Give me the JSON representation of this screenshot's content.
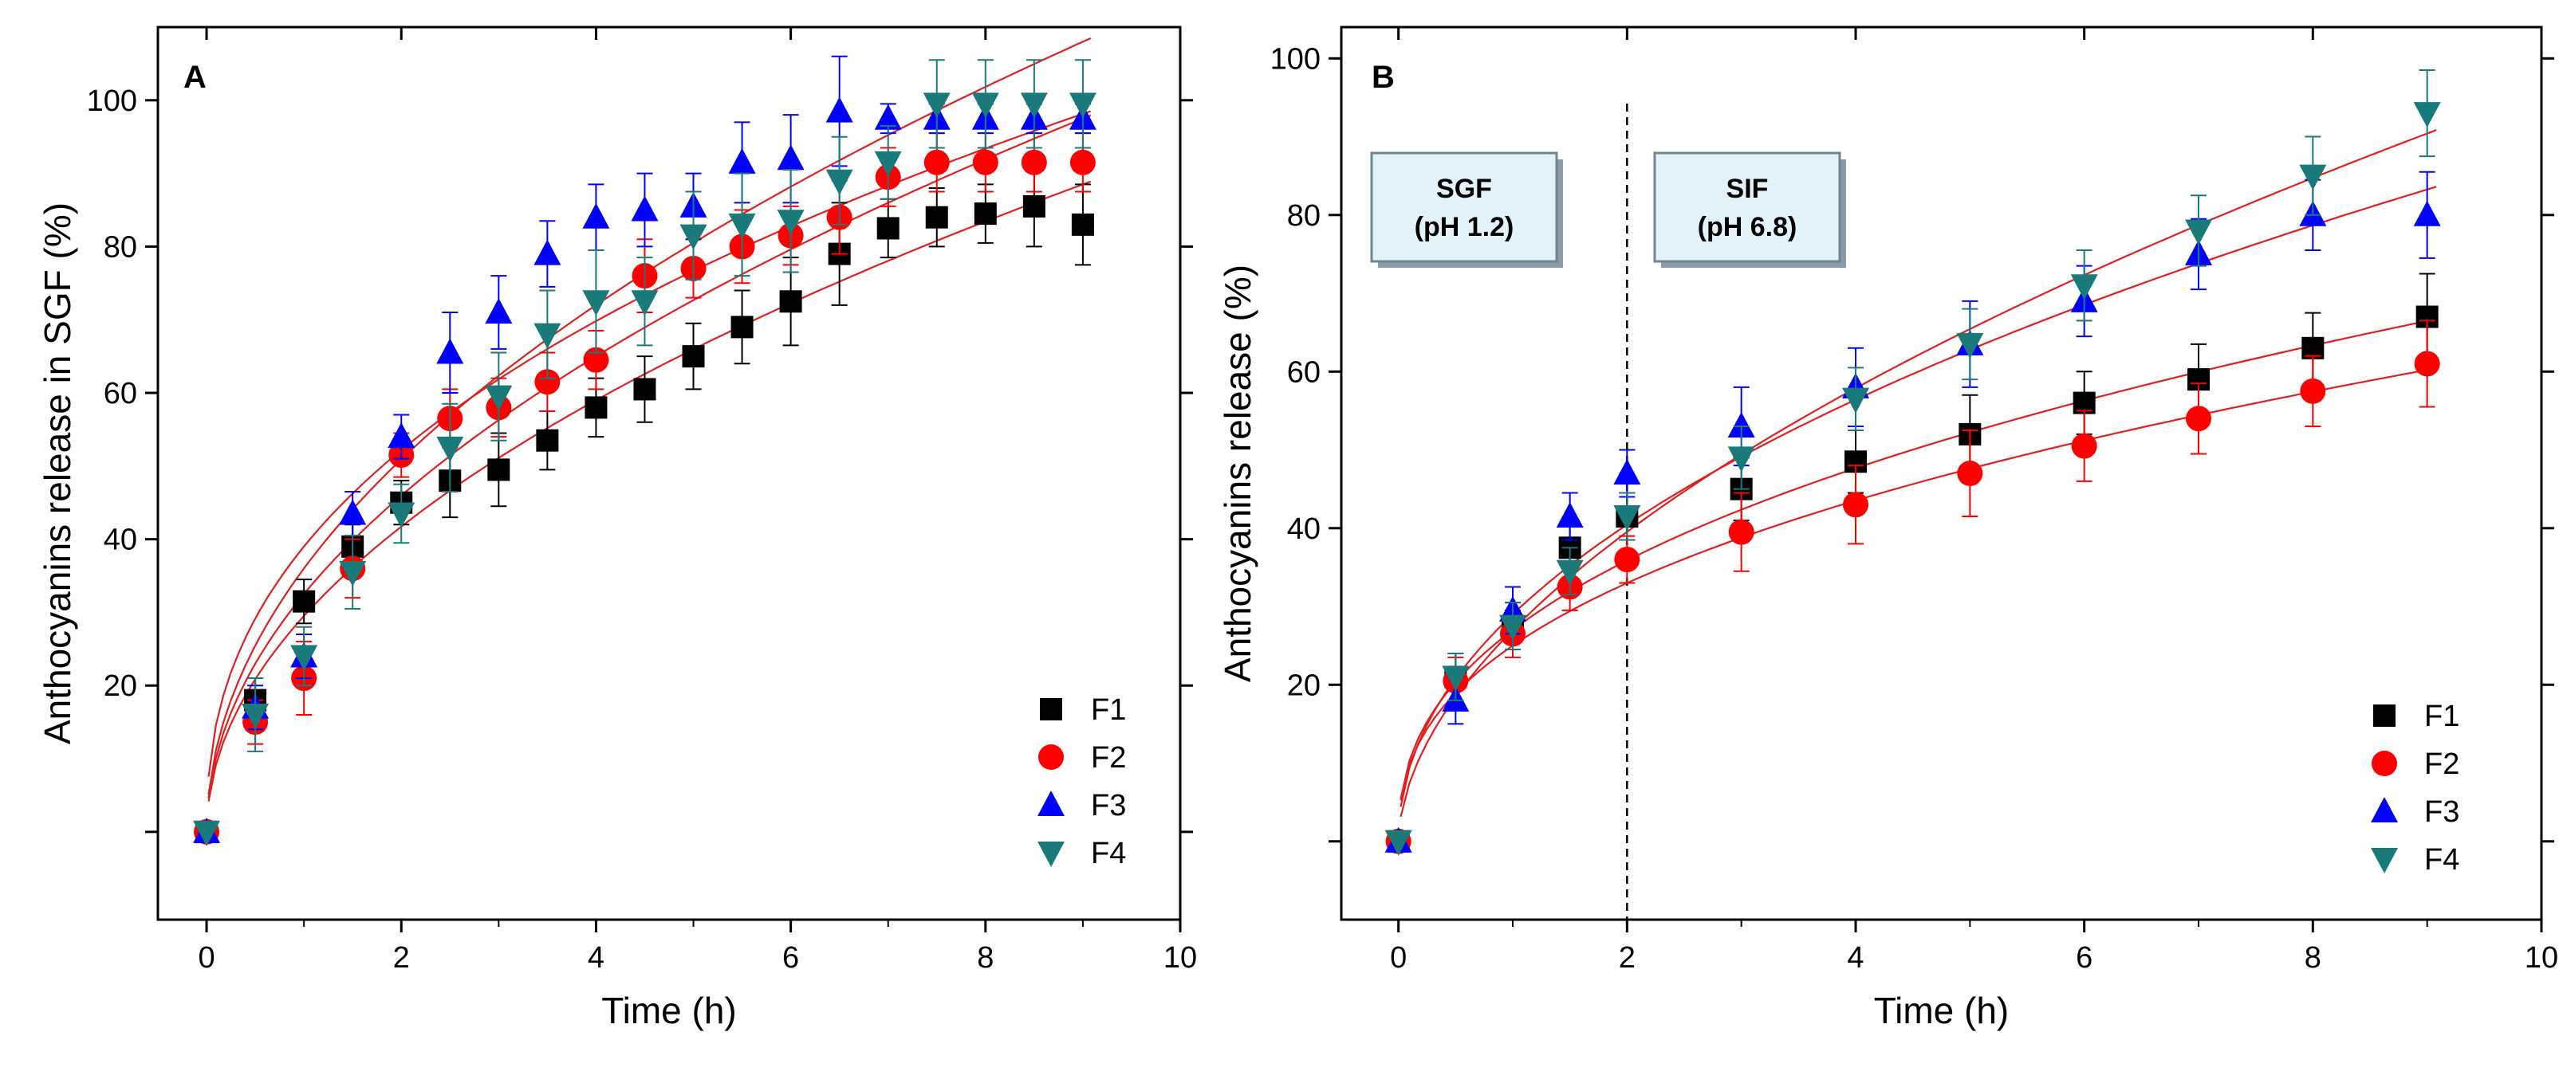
{
  "chart_data": [
    {
      "panel": "A",
      "type": "scatter",
      "fit": "power-law curves",
      "xlabel": "Time (h)",
      "ylabel": "Anthocyanins release in SGF (%)",
      "xlim": [
        -0.5,
        10
      ],
      "ylim": [
        -12,
        110
      ],
      "xticks": [
        0,
        2,
        4,
        6,
        8,
        10
      ],
      "yticks": [
        20,
        40,
        60,
        80,
        100
      ],
      "grid": false,
      "legend": "bottom-right",
      "x": [
        0,
        0.5,
        1,
        1.5,
        2,
        2.5,
        3,
        3.5,
        4,
        4.5,
        5,
        5.5,
        6,
        6.5,
        7,
        7.5,
        8,
        8.5,
        9
      ],
      "series": [
        {
          "name": "F1",
          "color": "#000000",
          "marker": "square",
          "values": [
            0,
            18,
            31.5,
            39,
            45,
            48,
            49.5,
            53.5,
            58,
            60.5,
            65,
            69,
            72.5,
            79,
            82.5,
            84,
            84.5,
            85.5,
            83
          ],
          "errors": [
            0,
            3,
            3,
            3,
            3,
            5,
            5,
            4,
            4,
            4.5,
            4.5,
            5,
            6,
            7,
            4,
            4,
            4,
            5.5,
            5.5
          ],
          "fit_k": 29.5,
          "fit_n": 0.5
        },
        {
          "name": "F2",
          "color": "#ff0000",
          "marker": "circle",
          "values": [
            0,
            15,
            21,
            36,
            51.5,
            56.5,
            58,
            61.5,
            64.5,
            76,
            77,
            80,
            81.5,
            84,
            89.5,
            91.5,
            91.5,
            91.5,
            91.5
          ],
          "errors": [
            0,
            3,
            5,
            4,
            3,
            4,
            4,
            4,
            4,
            5,
            4,
            5,
            4,
            5,
            4,
            4,
            4,
            4,
            4
          ],
          "fit_k": 32.5,
          "fit_n": 0.5
        },
        {
          "name": "F3",
          "color": "#0000ff",
          "marker": "triangle-up",
          "values": [
            0,
            17,
            24,
            43.5,
            54,
            65.5,
            71,
            79,
            84,
            85,
            85.5,
            91.5,
            92,
            98.5,
            97.5,
            97.5,
            97.5,
            97.5,
            97.5
          ],
          "errors": [
            0,
            3,
            3,
            3,
            3,
            5.5,
            5,
            4.5,
            4.5,
            5,
            4.5,
            5.5,
            6,
            7.5,
            2,
            2,
            2,
            2,
            2
          ],
          "fit_k": 39,
          "fit_n": 0.42
        },
        {
          "name": "F4",
          "color": "#1a7a7a",
          "marker": "triangle-down",
          "values": [
            0,
            16,
            24,
            35.5,
            43.5,
            52.5,
            59.5,
            68,
            72.5,
            72.5,
            81.5,
            83,
            83.5,
            89,
            91.5,
            99.5,
            99.5,
            99.5,
            99.5
          ],
          "errors": [
            0,
            5,
            4,
            5,
            4,
            6,
            6,
            6,
            7,
            6,
            6,
            7,
            7,
            6,
            5,
            6,
            6,
            6,
            6
          ],
          "fit_k": 36,
          "fit_n": 0.5
        }
      ]
    },
    {
      "panel": "B",
      "type": "scatter",
      "fit": "power-law curves",
      "xlabel": "Time (h)",
      "ylabel": "Anthocyanins release (%)",
      "xlim": [
        -0.5,
        10
      ],
      "ylim": [
        -10,
        104
      ],
      "xticks": [
        0,
        2,
        4,
        6,
        8,
        10
      ],
      "yticks": [
        20,
        40,
        60,
        80,
        100
      ],
      "grid": false,
      "legend": "bottom-right",
      "divider_x": 2,
      "annotations": [
        {
          "line1": "SGF",
          "line2": "(pH 1.2)"
        },
        {
          "line1": "SIF",
          "line2": "(pH 6.8)"
        }
      ],
      "x": [
        0,
        0.5,
        1,
        1.5,
        2,
        3,
        4,
        5,
        6,
        7,
        8,
        9
      ],
      "series": [
        {
          "name": "F1",
          "color": "#000000",
          "marker": "square",
          "values": [
            0,
            21,
            27.5,
            37.5,
            41.5,
            45,
            48.5,
            52,
            56,
            59,
            63,
            67
          ],
          "errors": [
            0,
            3,
            3,
            3,
            3,
            4,
            4,
            5,
            4,
            4.5,
            4.5,
            5.5
          ],
          "fit_k": 27,
          "fit_n": 0.41
        },
        {
          "name": "F2",
          "color": "#ff0000",
          "marker": "circle",
          "values": [
            0,
            20.5,
            26.5,
            32.5,
            36,
            39.5,
            43,
            47,
            50.5,
            54,
            57.5,
            61
          ],
          "errors": [
            0,
            3,
            3,
            3,
            3,
            5,
            5,
            5.5,
            4.5,
            4.5,
            4.5,
            5.5
          ],
          "fit_k": 25,
          "fit_n": 0.4
        },
        {
          "name": "F3",
          "color": "#0000ff",
          "marker": "triangle-up",
          "values": [
            0,
            18,
            29.5,
            41.5,
            47,
            53,
            58,
            63.5,
            69,
            75,
            80,
            80
          ],
          "errors": [
            0,
            3,
            3,
            3,
            3,
            5,
            5,
            5.5,
            4.5,
            4.5,
            4.5,
            5.5
          ],
          "fit_k": 29,
          "fit_n": 0.48
        },
        {
          "name": "F4",
          "color": "#1a7a7a",
          "marker": "triangle-down",
          "values": [
            0,
            21,
            27.5,
            34.5,
            41.5,
            49,
            56.5,
            63.5,
            71,
            78,
            85,
            93
          ],
          "errors": [
            0,
            3,
            3,
            3,
            3,
            4,
            4,
            4.5,
            4.5,
            4.5,
            5,
            5.5
          ],
          "fit_k": 27,
          "fit_n": 0.55
        }
      ]
    }
  ],
  "panels": {
    "a": {
      "label": "A"
    },
    "b": {
      "label": "B"
    }
  }
}
